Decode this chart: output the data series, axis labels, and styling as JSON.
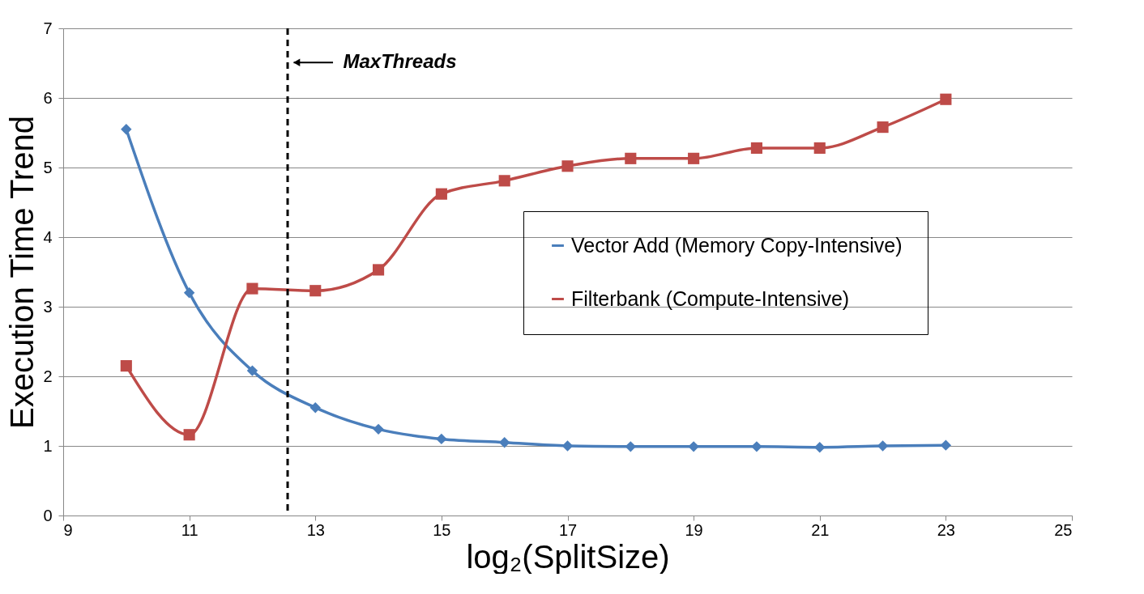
{
  "chart_data": {
    "type": "line",
    "xlabel": "log₂(SplitSize)",
    "ylabel": "Execution Time Trend",
    "x": [
      10,
      11,
      12,
      13,
      14,
      15,
      16,
      17,
      18,
      19,
      20,
      21,
      22,
      23
    ],
    "series": [
      {
        "name": "Vector Add (Memory Copy-Intensive)",
        "color": "#4a7ebb",
        "marker": "diamond",
        "values": [
          5.55,
          3.2,
          2.08,
          1.55,
          1.24,
          1.1,
          1.05,
          1.0,
          0.99,
          0.99,
          0.99,
          0.98,
          1.0,
          1.01
        ]
      },
      {
        "name": "Filterbank (Compute-Intensive)",
        "color": "#be4b48",
        "marker": "square",
        "values": [
          2.15,
          1.16,
          3.26,
          3.23,
          3.53,
          4.62,
          4.81,
          5.02,
          5.13,
          5.13,
          5.28,
          5.28,
          5.58,
          5.98
        ]
      }
    ],
    "xlim": [
      9,
      25
    ],
    "xticks": [
      9,
      11,
      13,
      15,
      17,
      19,
      21,
      23,
      25
    ],
    "ylim": [
      0,
      7
    ],
    "yticks": [
      0,
      1,
      2,
      3,
      4,
      5,
      6,
      7
    ],
    "grid": "y",
    "legend": "right",
    "line_style": "solid",
    "ref_lines": [
      {
        "axis": "x",
        "value": 12.56,
        "label": "MaxThreads",
        "color": "#000000",
        "line_style": "dashed"
      }
    ]
  }
}
